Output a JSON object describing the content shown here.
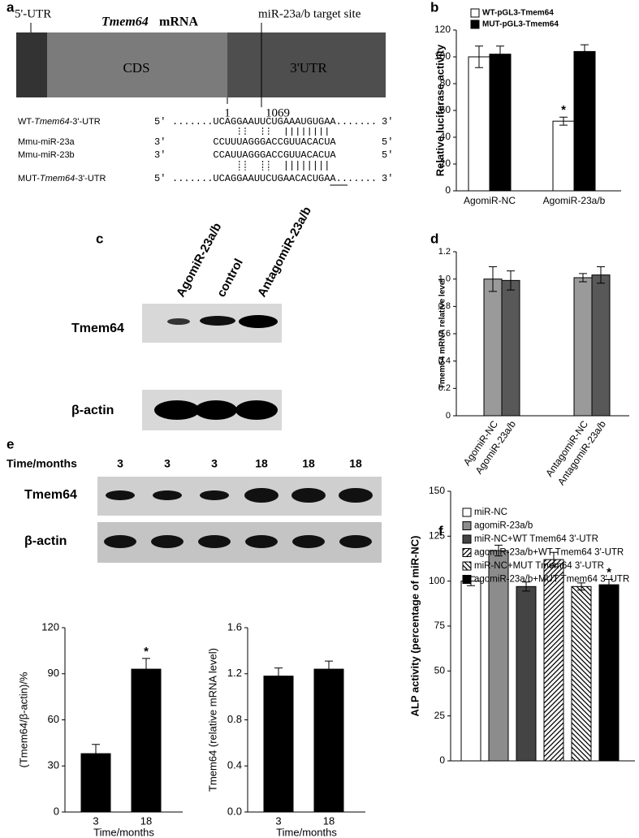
{
  "panel_a": {
    "label": "a",
    "utr5": "5'-UTR",
    "title_gene": "Tmem64",
    "title_rest": "mRNA",
    "target": "miR-23a/b target site",
    "cds": "CDS",
    "utr3": "3'UTR",
    "pos_start": "1",
    "pos_end": "1069",
    "rows": [
      {
        "label": [
          "WT-",
          "Tmem64",
          "-3'-UTR"
        ],
        "left": "5'",
        "seq": ".......UCAGGAAUUCUGAAAUGUGAA.......",
        "right": "3'"
      },
      {
        "label": [
          "Mmu-miR-23a"
        ],
        "left": "3'",
        "seq": "       CCUUUAGGGACCGUUACACUA",
        "right": "5'"
      },
      {
        "label": [
          "Mmu-miR-23b"
        ],
        "left": "3'",
        "seq": "       CCAUUAGGGACCGUUACACUA",
        "right": "5'"
      },
      {
        "label": [
          "MUT-",
          "Tmem64",
          "-3'-UTR"
        ],
        "left": "5'",
        "seq": ".......UCAGGAAUUCUGAACACUGAA.......",
        "right": "3'"
      }
    ]
  },
  "panel_c": {
    "label": "c",
    "lanes": [
      "AgomiR-23a/b",
      "control",
      "AntagomiR-23a/b"
    ],
    "rows": [
      "Tmem64",
      "β-actin"
    ]
  },
  "panel_e": {
    "label": "e",
    "axis": "Time/months",
    "lanes": [
      "3",
      "3",
      "3",
      "18",
      "18",
      "18"
    ],
    "rows": [
      "Tmem64",
      "β-actin"
    ]
  },
  "chart_data": [
    {
      "type": "bar",
      "label": "b",
      "ylabel": "Relative luciferase activity",
      "categories": [
        "AgomiR-NC",
        "AgomiR-23a/b"
      ],
      "series": [
        {
          "name": "WT-pGL3-Tmem64",
          "color": "#ffffff",
          "values": [
            100,
            52
          ],
          "errors": [
            8,
            3
          ]
        },
        {
          "name": "MUT-pGL3-Tmem64",
          "color": "#000000",
          "values": [
            102,
            104
          ],
          "errors": [
            6,
            5
          ]
        }
      ],
      "ylim": [
        0,
        120
      ],
      "yticks": [
        0,
        20,
        40,
        60,
        80,
        100,
        120
      ],
      "annotation": "*",
      "legend": "upper left"
    },
    {
      "type": "bar",
      "label": "d",
      "ylabel": "Tmem64 mRNA relative level",
      "categories": [
        "AgomiR-NC",
        "AgomiR-23a/b",
        "AntagomiR-NC",
        "AntagomiR-23a/b"
      ],
      "values": [
        1.0,
        0.99,
        1.01,
        1.03
      ],
      "errors": [
        0.09,
        0.07,
        0.03,
        0.06
      ],
      "colors": [
        "#9a9a9a",
        "#585858",
        "#9a9a9a",
        "#585858"
      ],
      "ylim": [
        0,
        1.2
      ],
      "yticks": [
        0,
        0.2,
        0.4,
        0.6,
        0.8,
        {
          "value": 1,
          "label": "1.0"
        },
        1.2
      ]
    },
    {
      "type": "bar",
      "ylabel": "(Tmem64/β-actin)/%",
      "xlabel": "Time/months",
      "categories": [
        "3",
        "18"
      ],
      "values": [
        38,
        93
      ],
      "errors": [
        6,
        7
      ],
      "color": "#000000",
      "ylim": [
        0,
        120
      ],
      "yticks": [
        0,
        30,
        60,
        90,
        120
      ],
      "annotation": "*"
    },
    {
      "type": "bar",
      "ylabel": "Tmem64 (relative mRNA level)",
      "xlabel": "Time/months",
      "categories": [
        "3",
        "18"
      ],
      "values": [
        1.18,
        1.24
      ],
      "errors": [
        0.07,
        0.07
      ],
      "color": "#000000",
      "ylim": [
        0,
        1.6
      ],
      "yticks": [
        {
          "value": 0,
          "label": "0.0"
        },
        0.4,
        0.8,
        1.2,
        1.6
      ]
    },
    {
      "type": "bar",
      "label": "f",
      "ylabel": "ALP activity (percentage of miR-NC)",
      "series": [
        {
          "name": "miR-NC",
          "color": "#ffffff",
          "values": [
            100
          ],
          "errors": [
            2.5
          ]
        },
        {
          "name": "agomiR-23a/b",
          "color": "#8c8c8c",
          "values": [
            117
          ],
          "errors": [
            3
          ]
        },
        {
          "name": "miR-NC+WT Tmem64 3'-UTR",
          "color": "#444444",
          "values": [
            97
          ],
          "errors": [
            2.5
          ]
        },
        {
          "name": "agomiR-23a/b+WT Tmem64 3'-UTR",
          "color": "#ffffff",
          "pattern": "hatch-right",
          "values": [
            112
          ],
          "errors": [
            4
          ]
        },
        {
          "name": "miR-NC+MUT Tmem64 3'-UTR",
          "color": "#ffffff",
          "pattern": "hatch-left",
          "values": [
            97
          ],
          "errors": [
            2
          ]
        },
        {
          "name": "agomiR-23a/b+MUT Tmem64 3'-UTR",
          "color": "#000000",
          "values": [
            98
          ],
          "errors": [
            3
          ]
        }
      ],
      "ylim": [
        0,
        150
      ],
      "yticks": [
        0,
        25,
        50,
        75,
        100,
        125,
        150
      ],
      "annotation": "*",
      "legend": "top"
    }
  ]
}
